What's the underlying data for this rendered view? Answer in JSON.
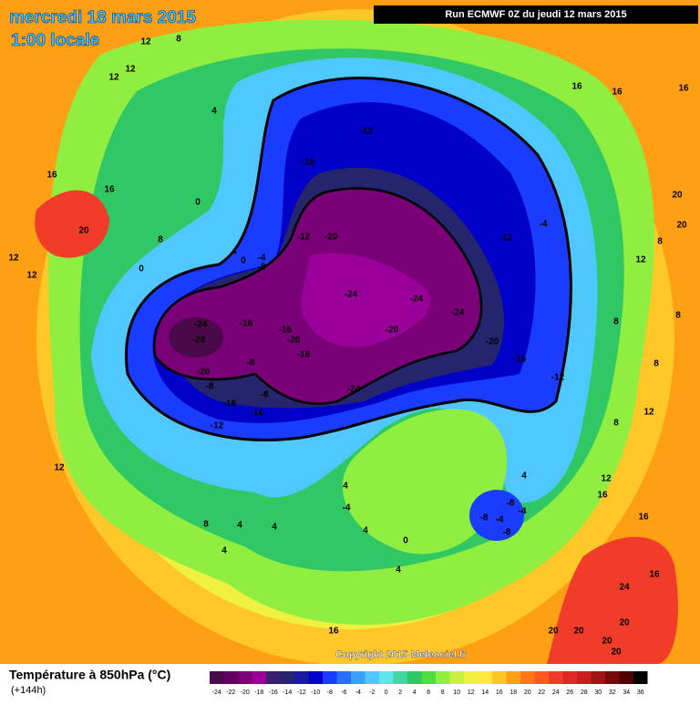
{
  "header": {
    "date": "mercredi 18 mars 2015",
    "time": "1:00 locale",
    "run": "Run ECMWF 0Z du jeudi 12 mars 2015"
  },
  "copyright": "Copyright 2015 Meteociel.fr",
  "legend": {
    "title": "Température à 850hPa (°C)",
    "subtitle": "(+144h)",
    "scale": [
      -24,
      -22,
      -20,
      -18,
      -16,
      -14,
      -12,
      -10,
      -8,
      -6,
      -4,
      -2,
      0,
      2,
      4,
      6,
      8,
      10,
      12,
      14,
      16,
      18,
      20,
      22,
      24,
      26,
      28,
      30,
      32,
      34,
      36
    ],
    "colors": [
      "#4a0a4a",
      "#62005f",
      "#7a0078",
      "#9a009a",
      "#3a1f6e",
      "#25256e",
      "#1a1aa0",
      "#0000c8",
      "#1a3cff",
      "#2a6eff",
      "#3aa0ff",
      "#50c8ff",
      "#60e6e6",
      "#40d8a0",
      "#30c864",
      "#50dc40",
      "#90ee40",
      "#c8f040",
      "#f0f040",
      "#ffe640",
      "#ffc828",
      "#ffa014",
      "#ff7814",
      "#ff5a1e",
      "#f03c28",
      "#e02828",
      "#c81e1e",
      "#a01414",
      "#780a0a",
      "#500000",
      "#000000"
    ]
  },
  "contour_labels": [
    -12,
    -16,
    -20,
    -12,
    -24,
    -24,
    -24,
    -20,
    -20,
    -16,
    -12,
    -12,
    -4,
    -24,
    -28,
    -16,
    -16,
    -20,
    -16,
    -20,
    -8,
    -8,
    -8,
    -16,
    -16,
    -12,
    -24,
    -8,
    -4,
    0,
    4,
    0,
    8,
    0,
    12,
    12,
    20,
    16,
    16,
    4,
    12,
    8,
    12,
    12,
    16,
    16,
    16,
    20,
    20,
    8,
    12,
    8,
    8,
    8,
    12,
    8,
    12,
    16,
    16,
    24,
    16,
    20,
    20,
    20,
    20,
    20,
    16,
    -8,
    -4,
    -8,
    -8,
    -4,
    4,
    0,
    4,
    4,
    -4,
    4,
    8,
    4,
    4,
    4,
    12
  ]
}
